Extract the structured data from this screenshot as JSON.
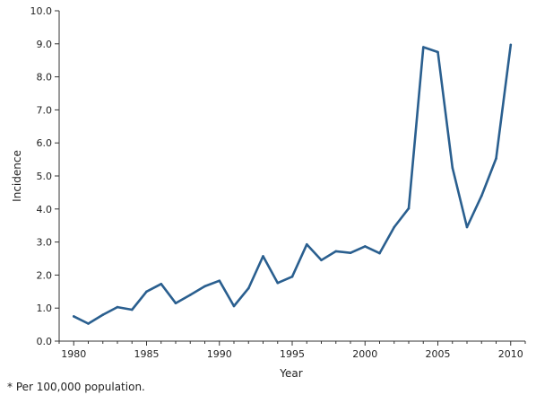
{
  "chart_data": {
    "type": "line",
    "title": "",
    "xlabel": "Year",
    "ylabel": "Incidence",
    "xlim": [
      1979,
      2011
    ],
    "ylim": [
      0,
      10
    ],
    "x_ticks": [
      "1980",
      "1985",
      "1990",
      "1995",
      "2000",
      "2005",
      "2010"
    ],
    "y_ticks": [
      "0.0",
      "1.0",
      "2.0",
      "3.0",
      "4.0",
      "5.0",
      "6.0",
      "7.0",
      "8.0",
      "9.0",
      "10.0"
    ],
    "grid": false,
    "legend": "none",
    "series": [
      {
        "color": "#2a5f8f",
        "x": [
          1980,
          1981,
          1982,
          1983,
          1984,
          1985,
          1986,
          1987,
          1988,
          1989,
          1990,
          1991,
          1992,
          1993,
          1994,
          1995,
          1996,
          1997,
          1998,
          1999,
          2000,
          2001,
          2002,
          2003,
          2004,
          2005,
          2006,
          2007,
          2008,
          2009,
          2010
        ],
        "values": [
          0.75,
          0.53,
          0.8,
          1.03,
          0.95,
          1.5,
          1.73,
          1.15,
          1.4,
          1.66,
          1.83,
          1.06,
          1.6,
          2.57,
          1.76,
          1.95,
          2.93,
          2.45,
          2.72,
          2.67,
          2.87,
          2.66,
          3.45,
          4.02,
          8.9,
          8.75,
          5.25,
          3.45,
          4.4,
          5.53,
          8.97
        ]
      }
    ]
  },
  "footnote": "* Per 100,000 population."
}
